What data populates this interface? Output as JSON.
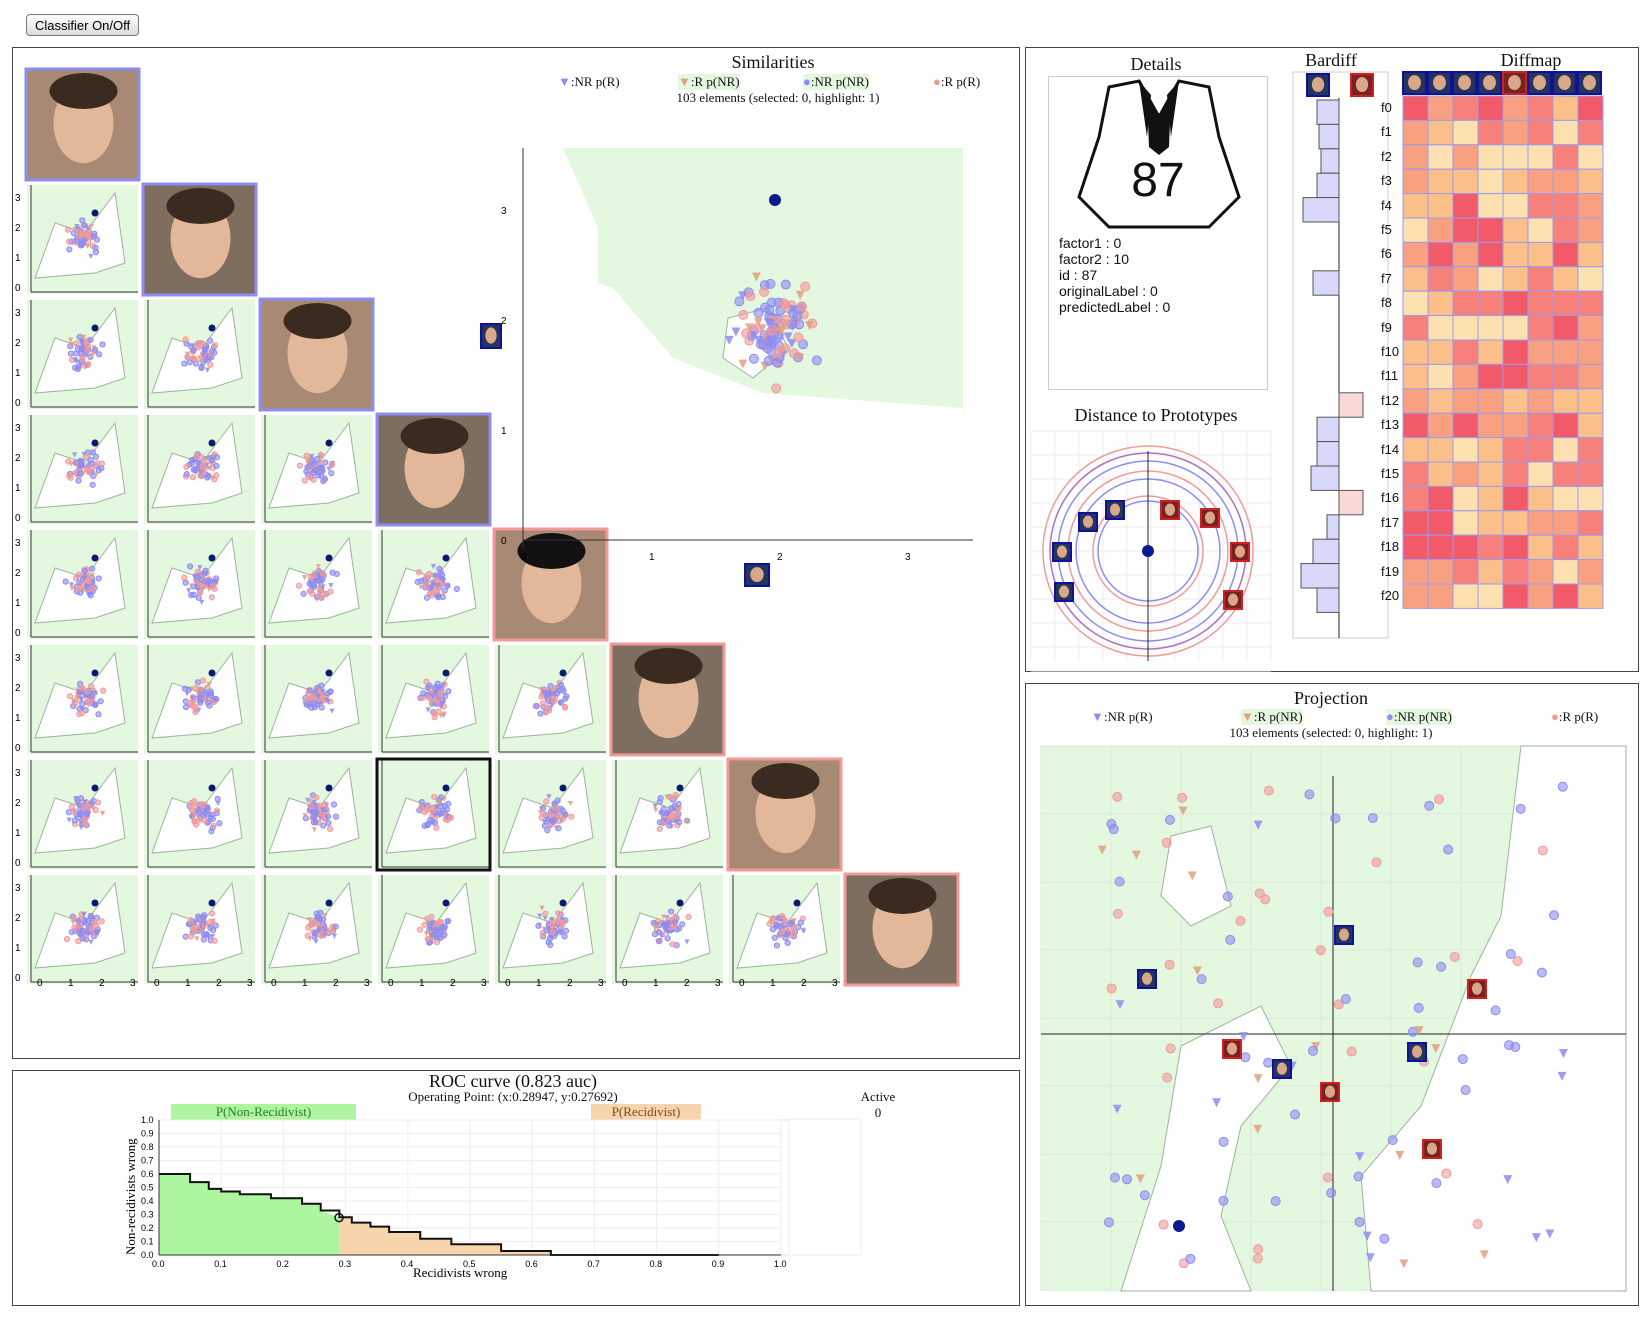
{
  "toolbar": {
    "classifier_toggle": "Classifier On/Off"
  },
  "legend": {
    "nr_pr": ":NR p(R)",
    "r_pnr": ":R p(NR)",
    "nr_pnr": ":NR p(NR)",
    "r_pr": ":R p(R)"
  },
  "similarities": {
    "title": "Similarities",
    "status": "103 elements (selected: 0, highlight: 1)"
  },
  "details": {
    "title": "Details",
    "id_big": "87",
    "lines": [
      "factor1 : 0",
      "factor2 : 10",
      "id : 87",
      "originalLabel : 0",
      "predictedLabel : 0"
    ]
  },
  "distance": {
    "title": "Distance to Prototypes"
  },
  "bardiff": {
    "title": "Bardiff"
  },
  "diffmap": {
    "title": "Diffmap",
    "rows": [
      "f0",
      "f1",
      "f2",
      "f3",
      "f4",
      "f5",
      "f6",
      "f7",
      "f8",
      "f9",
      "f10",
      "f11",
      "f12",
      "f13",
      "f14",
      "f15",
      "f16",
      "f17",
      "f18",
      "f19",
      "f20"
    ]
  },
  "projection": {
    "title": "Projection",
    "status": "103 elements (selected: 0, highlight: 1)"
  },
  "roc": {
    "title": "ROC curve (0.823 auc)",
    "operating_point": "Operating Point: (x:0.28947, y:0.27692)",
    "label_nonrec": "P(Non-Recidivist)",
    "label_rec": "P(Recidivist)",
    "ylabel": "Non-recidivists wrong",
    "xlabel": "Recidivists wrong",
    "active_label": "Active",
    "active_value": "0"
  },
  "colors": {
    "nr": "#8c8cf2",
    "r": "#f29a9a",
    "region_green": "#e4f7df",
    "roc_green": "#aef5a0",
    "roc_orange": "#f8d4ac"
  },
  "chart_data": [
    {
      "type": "line",
      "title": "ROC curve (0.823 auc)",
      "xlabel": "Recidivists wrong",
      "ylabel": "Non-recidivists wrong",
      "xlim": [
        0,
        1.0
      ],
      "ylim": [
        0,
        1.0
      ],
      "x_ticks": [
        "0.0",
        "0.1",
        "0.2",
        "0.3",
        "0.4",
        "0.5",
        "0.6",
        "0.7",
        "0.8",
        "0.9",
        "1.0"
      ],
      "y_ticks": [
        "0.0",
        "0.1",
        "0.2",
        "0.3",
        "0.4",
        "0.5",
        "0.6",
        "0.7",
        "0.8",
        "0.9",
        "1.0"
      ],
      "operating_point": [
        0.28947,
        0.27692
      ],
      "x": [
        0.0,
        0.05,
        0.05,
        0.08,
        0.08,
        0.1,
        0.1,
        0.13,
        0.13,
        0.18,
        0.18,
        0.23,
        0.23,
        0.26,
        0.26,
        0.29,
        0.29,
        0.31,
        0.31,
        0.34,
        0.34,
        0.37,
        0.37,
        0.42,
        0.42,
        0.47,
        0.47,
        0.55,
        0.55,
        0.63,
        0.63,
        0.9
      ],
      "y": [
        0.6,
        0.6,
        0.54,
        0.54,
        0.49,
        0.49,
        0.47,
        0.47,
        0.45,
        0.45,
        0.42,
        0.42,
        0.38,
        0.38,
        0.33,
        0.33,
        0.28,
        0.28,
        0.24,
        0.24,
        0.21,
        0.21,
        0.17,
        0.17,
        0.12,
        0.12,
        0.08,
        0.08,
        0.03,
        0.03,
        0.0,
        0.0
      ]
    }
  ]
}
